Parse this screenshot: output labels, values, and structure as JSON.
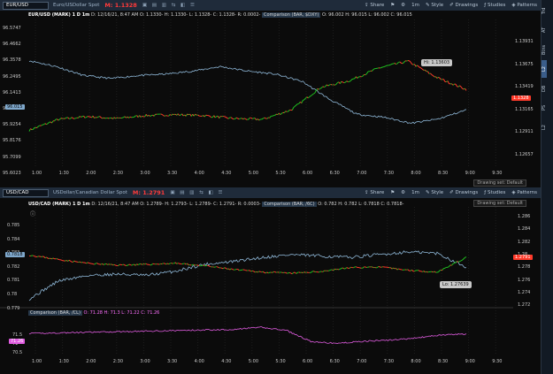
{
  "panel1": {
    "symbol": "EUR/USD",
    "description": "Euro/USDollar Spot",
    "last": "M: 1.1328",
    "info": {
      "main": "EUR/USD (MARK) 1 D 1m",
      "date": "D: 12/16/21, 8:47 AM",
      "o": "O: 1.1330-",
      "h": "H: 1.1330-",
      "l": "L: 1.1328-",
      "c": "C: 1.1328-",
      "r": "R: 0.0002-",
      "cmp": "Comparison (BAR, $DXY)",
      "co": "O: 96.002",
      "ch": "H: 96.015",
      "cl": "L: 96.002",
      "cc": "C: 96.015"
    },
    "left_ticks": [
      "96.5747",
      "96.4662",
      "96.3578",
      "96.2495",
      "96.1413",
      "96.015",
      "95.9254",
      "95.8176",
      "95.7099",
      "95.6023"
    ],
    "right_ticks": [
      "1.13931",
      "1.13675",
      "1.13419",
      "1.13165",
      "1.12911",
      "1.12657"
    ],
    "left_tag": "96.015",
    "right_tag": "1.1328",
    "callout": "Hi: 1.13603",
    "x_ticks": [
      "1:00",
      "1:30",
      "2:00",
      "2:30",
      "3:00",
      "3:30",
      "4:00",
      "4:30",
      "5:00",
      "5:30",
      "6:00",
      "6:30",
      "7:00",
      "7:30",
      "8:00",
      "8:30",
      "9:00",
      "9:30"
    ],
    "drawing_set": "Drawing set: Default"
  },
  "panel2": {
    "symbol": "USD/CAD",
    "description": "USDollar/Canadian Dollar Spot",
    "last": "M: 1.2791",
    "info": {
      "main": "USD/CAD (MARK) 1 D 1m",
      "date": "D: 12/16/21, 8:47 AM",
      "o": "O: 1.2789-",
      "h": "H: 1.2793-",
      "l": "L: 1.2789-",
      "c": "C: 1.2791-",
      "r": "R: 0.0003-",
      "cmp": "Comparison (BAR, /6C)",
      "co": "O: 0.782",
      "ch": "H: 0.782",
      "cl": "L: 0.7818",
      "cc": "C: 0.7818-"
    },
    "left_ticks": [
      "0.785",
      "0.784",
      "0.783",
      "0.782",
      "0.781",
      "0.78",
      "0.779"
    ],
    "right_ticks": [
      "1.286",
      "1.284",
      "1.282",
      "1.28",
      "1.278",
      "1.276",
      "1.274",
      "1.272"
    ],
    "left_tag": "0.7818",
    "right_tag": "1.2791",
    "callout": "Lo: 1.27639",
    "sub": {
      "label": "Comparison (BAR, /CL)",
      "o": "O: 71.28",
      "h": "H: 71.3",
      "l": "L: 71.22",
      "c": "C: 71.26",
      "ticks": [
        "71.5",
        "71",
        "70.5"
      ],
      "tag": "71.26"
    },
    "x_ticks": [
      "1:00",
      "1:30",
      "2:00",
      "2:30",
      "3:00",
      "3:30",
      "4:00",
      "4:30",
      "5:00",
      "5:30",
      "6:00",
      "6:30",
      "7:00",
      "7:30",
      "8:00",
      "8:30",
      "9:00",
      "9:30"
    ],
    "drawing_set": "Drawing set: Default"
  },
  "toolbar": {
    "share": "Share",
    "style": "Style",
    "drawings": "Drawings",
    "studies": "Studies",
    "patterns": "Patterns"
  },
  "sidebar": [
    "Trd",
    "AT",
    "Btns",
    "L2",
    "DB",
    "PS",
    "L2"
  ],
  "colors": {
    "primary_up": "#21c21f",
    "primary_down": "#ff3a2a",
    "comparison": "#8fb8d8",
    "sub_study": "#e05ce0",
    "topbar": "#1f2b3a"
  }
}
